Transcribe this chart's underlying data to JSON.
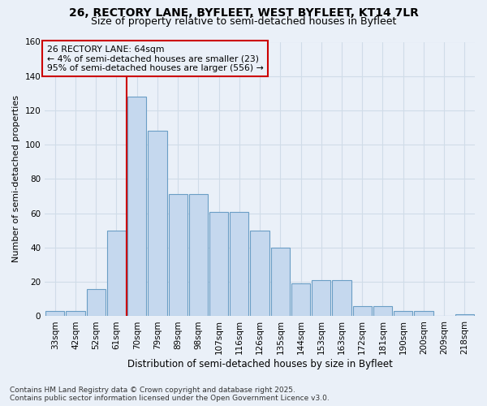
{
  "title": "26, RECTORY LANE, BYFLEET, WEST BYFLEET, KT14 7LR",
  "subtitle": "Size of property relative to semi-detached houses in Byfleet",
  "xlabel": "Distribution of semi-detached houses by size in Byfleet",
  "ylabel": "Number of semi-detached properties",
  "categories": [
    "33sqm",
    "42sqm",
    "52sqm",
    "61sqm",
    "70sqm",
    "79sqm",
    "89sqm",
    "98sqm",
    "107sqm",
    "116sqm",
    "126sqm",
    "135sqm",
    "144sqm",
    "153sqm",
    "163sqm",
    "172sqm",
    "181sqm",
    "190sqm",
    "200sqm",
    "209sqm",
    "218sqm"
  ],
  "values": [
    3,
    3,
    16,
    50,
    128,
    108,
    71,
    71,
    61,
    61,
    50,
    40,
    19,
    21,
    21,
    6,
    6,
    3,
    3,
    0,
    1
  ],
  "bar_color": "#c5d8ee",
  "bar_edge_color": "#6a9ec5",
  "property_bin_index": 3,
  "annotation_title": "26 RECTORY LANE: 64sqm",
  "annotation_line1": "← 4% of semi-detached houses are smaller (23)",
  "annotation_line2": "95% of semi-detached houses are larger (556) →",
  "vline_color": "#cc0000",
  "annotation_box_color": "#cc0000",
  "ylim": [
    0,
    160
  ],
  "yticks": [
    0,
    20,
    40,
    60,
    80,
    100,
    120,
    140,
    160
  ],
  "footer_line1": "Contains HM Land Registry data © Crown copyright and database right 2025.",
  "footer_line2": "Contains public sector information licensed under the Open Government Licence v3.0.",
  "bg_color": "#eaf0f8",
  "grid_color": "#d0dce8",
  "title_fontsize": 10,
  "subtitle_fontsize": 9,
  "tick_fontsize": 7.5,
  "ylabel_fontsize": 8,
  "xlabel_fontsize": 8.5,
  "annotation_fontsize": 7.8,
  "footer_fontsize": 6.5
}
